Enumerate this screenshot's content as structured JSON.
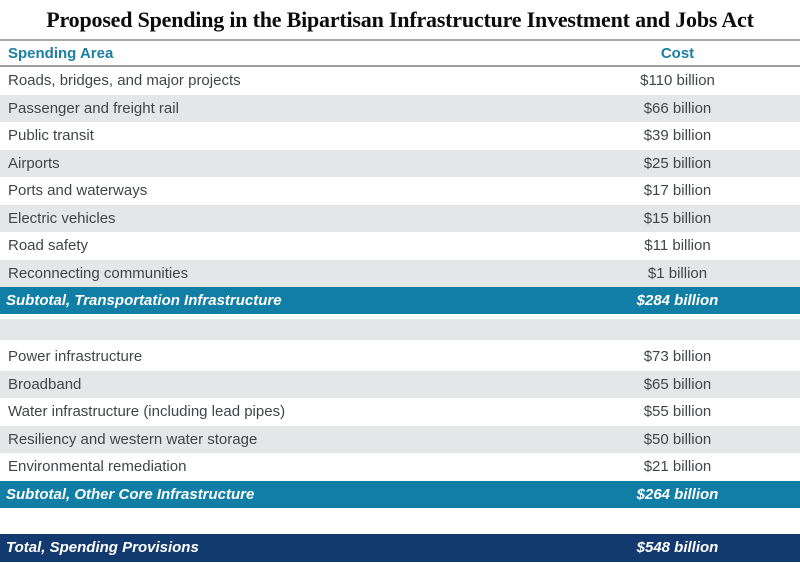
{
  "title": "Proposed Spending in the Bipartisan Infrastructure Investment and Jobs Act",
  "colors": {
    "accent_teal": "#117fa5",
    "header_text_teal": "#1b7fa1",
    "total_navy": "#123a6e",
    "stripe_gray": "#e5e6e8",
    "row_text": "#414549",
    "rule_gray": "#a8a8a8"
  },
  "table": {
    "columns": {
      "area": "Spending Area",
      "cost": "Cost"
    },
    "sections": [
      {
        "rows": [
          {
            "label": "Roads, bridges, and major projects",
            "value": "$110 billion"
          },
          {
            "label": "Passenger and freight rail",
            "value": "$66 billion"
          },
          {
            "label": "Public transit",
            "value": "$39 billion"
          },
          {
            "label": "Airports",
            "value": "$25 billion"
          },
          {
            "label": "Ports and waterways",
            "value": "$17 billion"
          },
          {
            "label": "Electric vehicles",
            "value": "$15 billion"
          },
          {
            "label": "Road safety",
            "value": "$11 billion"
          },
          {
            "label": "Reconnecting communities",
            "value": "$1 billion"
          }
        ],
        "subtotal": {
          "label": "Subtotal, Transportation Infrastructure",
          "value": "$284 billion"
        }
      },
      {
        "rows": [
          {
            "label": "Power infrastructure",
            "value": "$73 billion"
          },
          {
            "label": "Broadband",
            "value": "$65 billion"
          },
          {
            "label": "Water infrastructure (including lead pipes)",
            "value": "$55 billion"
          },
          {
            "label": "Resiliency and western water storage",
            "value": "$50 billion"
          },
          {
            "label": "Environmental remediation",
            "value": "$21 billion"
          }
        ],
        "subtotal": {
          "label": "Subtotal, Other Core Infrastructure",
          "value": "$264 billion"
        }
      }
    ],
    "total": {
      "label": "Total, Spending Provisions",
      "value": "$548 billion"
    }
  },
  "chart_data": {
    "type": "table",
    "title": "Proposed Spending in the Bipartisan Infrastructure Investment and Jobs Act",
    "columns": [
      "Spending Area",
      "Cost"
    ],
    "categories": [
      "Roads, bridges, and major projects",
      "Passenger and freight rail",
      "Public transit",
      "Airports",
      "Ports and waterways",
      "Electric vehicles",
      "Road safety",
      "Reconnecting communities",
      "Power infrastructure",
      "Broadband",
      "Water infrastructure (including lead pipes)",
      "Resiliency and western water storage",
      "Environmental remediation"
    ],
    "values_billions": [
      110,
      66,
      39,
      25,
      17,
      15,
      11,
      1,
      73,
      65,
      55,
      50,
      21
    ],
    "subtotals": [
      {
        "label": "Subtotal, Transportation Infrastructure",
        "billions": 284
      },
      {
        "label": "Subtotal, Other Core Infrastructure",
        "billions": 264
      }
    ],
    "total": {
      "label": "Total, Spending Provisions",
      "billions": 548
    }
  }
}
